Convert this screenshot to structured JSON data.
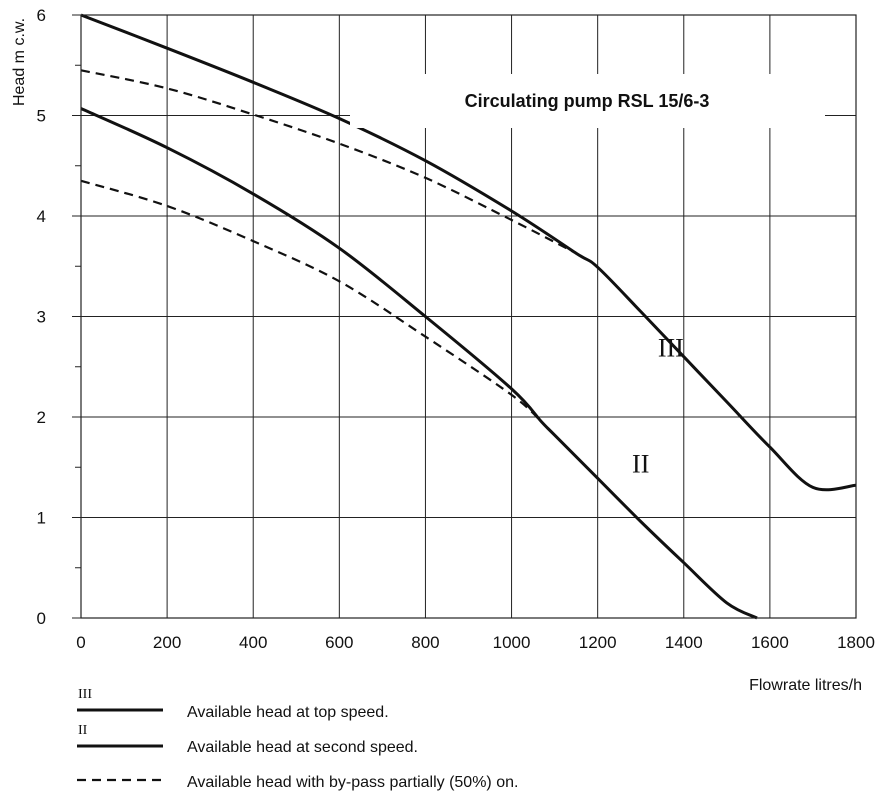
{
  "chart_data": {
    "type": "line",
    "title": "Circulating pump RSL 15/6-3",
    "xlabel": "Flowrate litres/h",
    "ylabel": "Head m c.w.",
    "xlim": [
      0,
      1800
    ],
    "ylim": [
      0,
      6
    ],
    "x_ticks": [
      "0",
      "200",
      "400",
      "600",
      "800",
      "1000",
      "1200",
      "1400",
      "1600",
      "1800"
    ],
    "y_ticks": [
      "0",
      "1",
      "2",
      "3",
      "4",
      "5",
      "6"
    ],
    "grid": true,
    "series": [
      {
        "name": "III",
        "style": "solid",
        "x": [
          0,
          200,
          400,
          600,
          800,
          1000,
          1150,
          1200,
          1300,
          1400,
          1500,
          1600,
          1700,
          1800
        ],
        "y": [
          6.0,
          5.67,
          5.33,
          4.97,
          4.55,
          4.05,
          3.63,
          3.49,
          3.05,
          2.6,
          2.15,
          1.7,
          1.3,
          1.32
        ]
      },
      {
        "name": "II",
        "style": "solid",
        "x": [
          0,
          200,
          400,
          600,
          800,
          1000,
          1070,
          1100,
          1200,
          1300,
          1400,
          1500,
          1570
        ],
        "y": [
          5.07,
          4.68,
          4.22,
          3.68,
          3.0,
          2.28,
          1.95,
          1.82,
          1.39,
          0.96,
          0.55,
          0.15,
          0.0
        ]
      },
      {
        "name": "",
        "style": "dashed",
        "x": [
          0,
          200,
          400,
          600,
          800,
          1000,
          1150
        ],
        "y": [
          5.45,
          5.27,
          5.01,
          4.72,
          4.38,
          3.96,
          3.63
        ]
      },
      {
        "name": "",
        "style": "dashed",
        "x": [
          0,
          200,
          400,
          600,
          800,
          1000,
          1070
        ],
        "y": [
          4.35,
          4.1,
          3.75,
          3.35,
          2.8,
          2.22,
          1.95
        ]
      }
    ],
    "annotations": [
      {
        "text": "III",
        "x": 1370,
        "y": 2.6
      },
      {
        "text": "II",
        "x": 1300,
        "y": 1.45
      }
    ],
    "legend": {
      "placement": "bottom-left",
      "entries": [
        {
          "marker": "III",
          "style": "solid",
          "label": "Available head at top speed."
        },
        {
          "marker": "II",
          "style": "solid",
          "label": "Available head at second speed."
        },
        {
          "marker": "",
          "style": "dashed",
          "label": "Available head with by-pass partially (50%) on."
        }
      ]
    }
  }
}
